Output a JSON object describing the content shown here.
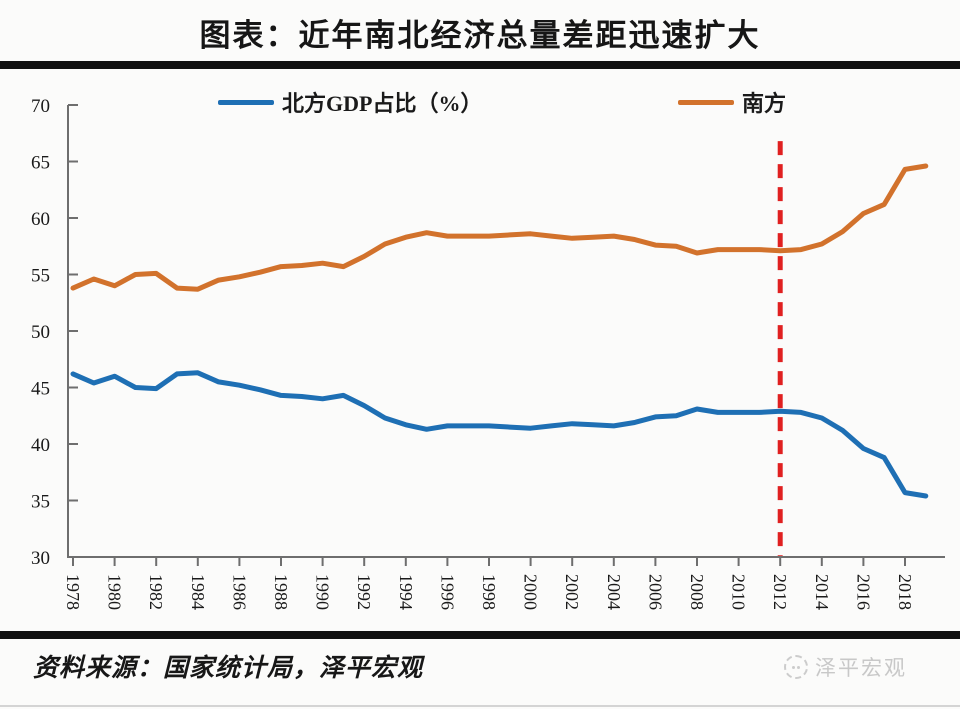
{
  "title": "图表：近年南北经济总量差距迅速扩大",
  "source": "资料来源：国家统计局，泽平宏观",
  "watermark": "泽平宏观",
  "colors": {
    "north": "#1e6fb4",
    "south": "#d2722c",
    "annotation_red": "#e02020",
    "axis": "#6e6e6e",
    "tick_text": "#1a1a1a",
    "divider_bar": "#101010",
    "watermark_gray": "#c8c8c8"
  },
  "legend": {
    "items": [
      {
        "label": "北方GDP占比（%）",
        "color": "#1e6fb4"
      },
      {
        "label": "南方",
        "color": "#d2722c"
      }
    ]
  },
  "chart_data": {
    "type": "line",
    "title": "图表：近年南北经济总量差距迅速扩大",
    "xlabel": "",
    "ylabel": "",
    "x": [
      1978,
      1979,
      1980,
      1981,
      1982,
      1983,
      1984,
      1985,
      1986,
      1987,
      1988,
      1989,
      1990,
      1991,
      1992,
      1993,
      1994,
      1995,
      1996,
      1997,
      1998,
      1999,
      2000,
      2001,
      2002,
      2003,
      2004,
      2005,
      2006,
      2007,
      2008,
      2009,
      2010,
      2011,
      2012,
      2013,
      2014,
      2015,
      2016,
      2017,
      2018,
      2019
    ],
    "series": [
      {
        "name": "北方GDP占比（%）",
        "color": "#1e6fb4",
        "values": [
          46.2,
          45.4,
          46.0,
          45.0,
          44.9,
          46.2,
          46.3,
          45.5,
          45.2,
          44.8,
          44.3,
          44.2,
          44.0,
          44.3,
          43.4,
          42.3,
          41.7,
          41.3,
          41.6,
          41.6,
          41.6,
          41.5,
          41.4,
          41.6,
          41.8,
          41.7,
          41.6,
          41.9,
          42.4,
          42.5,
          43.1,
          42.8,
          42.8,
          42.8,
          42.9,
          42.8,
          42.3,
          41.2,
          39.6,
          38.8,
          35.7,
          35.4
        ]
      },
      {
        "name": "南方",
        "color": "#d2722c",
        "values": [
          53.8,
          54.6,
          54.0,
          55.0,
          55.1,
          53.8,
          53.7,
          54.5,
          54.8,
          55.2,
          55.7,
          55.8,
          56.0,
          55.7,
          56.6,
          57.7,
          58.3,
          58.7,
          58.4,
          58.4,
          58.4,
          58.5,
          58.6,
          58.4,
          58.2,
          58.3,
          58.4,
          58.1,
          57.6,
          57.5,
          56.9,
          57.2,
          57.2,
          57.2,
          57.1,
          57.2,
          57.7,
          58.8,
          60.4,
          61.2,
          64.3,
          64.6
        ]
      }
    ],
    "ylim": [
      30,
      70
    ],
    "xlim": [
      1978,
      2019
    ],
    "yticks": [
      70,
      65,
      60,
      55,
      50,
      45,
      40,
      35,
      30
    ],
    "xticks": [
      1978,
      1980,
      1982,
      1984,
      1986,
      1988,
      1990,
      1992,
      1994,
      1996,
      1998,
      2000,
      2002,
      2004,
      2006,
      2008,
      2010,
      2012,
      2014,
      2016,
      2018
    ],
    "grid": false,
    "legend_position": "top",
    "annotations": [
      {
        "type": "vline",
        "x": 2012,
        "style": "dashed",
        "color": "#e02020",
        "y_from": 30.1,
        "y_to": 66.8
      }
    ]
  }
}
